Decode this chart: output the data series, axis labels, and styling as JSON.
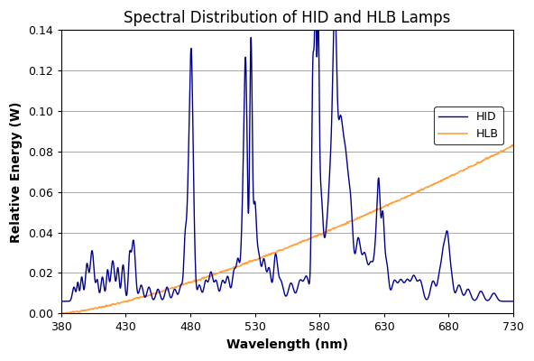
{
  "title": "Spectral Distribution of HID and HLB Lamps",
  "xlabel": "Wavelength (nm)",
  "ylabel": "Relative Energy (W)",
  "xlim": [
    380,
    730
  ],
  "ylim": [
    0.0,
    0.14
  ],
  "yticks": [
    0.0,
    0.02,
    0.04,
    0.06,
    0.08,
    0.1,
    0.12,
    0.14
  ],
  "xticks": [
    380,
    430,
    480,
    530,
    580,
    630,
    680,
    730
  ],
  "hid_color": "#00008B",
  "hlb_color": "#FFA040",
  "background_color": "#ffffff",
  "plot_bg_color": "#ffffff",
  "legend_labels": [
    "HID",
    "HLB"
  ],
  "title_fontsize": 12,
  "axis_fontsize": 10,
  "tick_fontsize": 9
}
